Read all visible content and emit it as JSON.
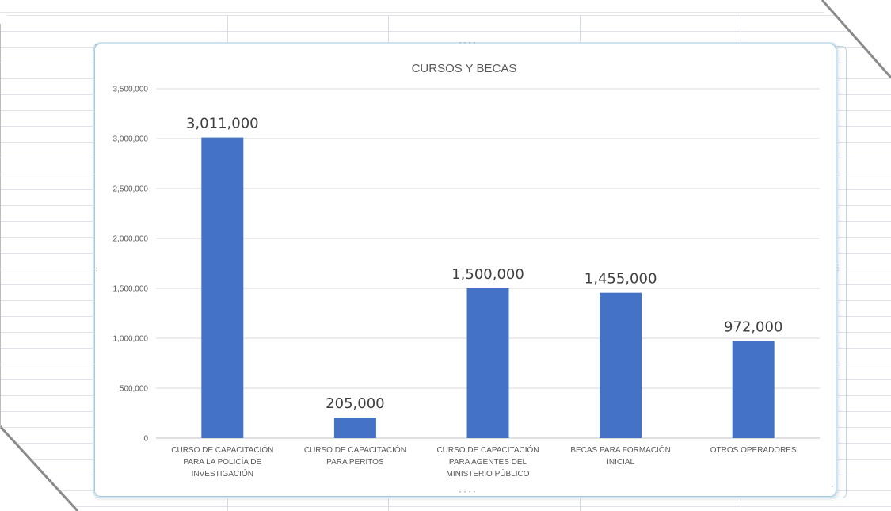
{
  "chart_data": {
    "type": "bar",
    "title": "CURSOS Y BECAS",
    "categories": [
      [
        "CURSO DE CAPACITACIÓN",
        "PARA LA POLICÍA DE",
        "INVESTIGACIÓN"
      ],
      [
        "CURSO DE CAPACITACIÓN",
        "PARA PERITOS"
      ],
      [
        "CURSO DE CAPACITACIÓN",
        "PARA AGENTES DEL",
        "MINISTERIO PÚBLICO"
      ],
      [
        "BECAS PARA FORMACIÓN",
        "INICIAL"
      ],
      [
        "OTROS OPERADORES"
      ]
    ],
    "values": [
      3011000,
      205000,
      1500000,
      1455000,
      972000
    ],
    "data_labels": [
      "3,011,000",
      "205,000",
      "1,500,000",
      "1,455,000",
      "972,000"
    ],
    "ylim": [
      0,
      3500000
    ],
    "y_ticks": [
      0,
      500000,
      1000000,
      1500000,
      2000000,
      2500000,
      3000000,
      3500000
    ],
    "y_tick_labels": [
      "0",
      "500,000",
      "1,000,000",
      "1,500,000",
      "2,000,000",
      "2,500,000",
      "3,000,000",
      "3,500,000"
    ],
    "xlabel": "",
    "ylabel": "",
    "grid": true,
    "legend": "none",
    "bar_color": "#4472c4",
    "grid_color": "#d9d9d9"
  }
}
